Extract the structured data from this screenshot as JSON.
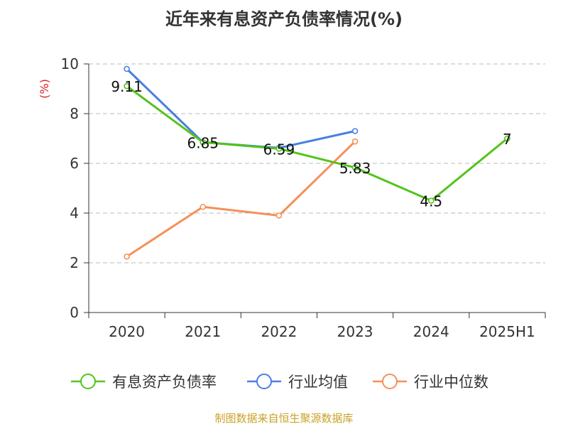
{
  "chart_data": {
    "type": "line",
    "title": "近年来有息资产负债率情况(%)",
    "ylabel": "(%)",
    "xlabel": "",
    "categories": [
      "2020",
      "2021",
      "2022",
      "2023",
      "2024",
      "2025H1"
    ],
    "ylim": [
      0,
      10
    ],
    "yticks": [
      0,
      2,
      4,
      6,
      8,
      10
    ],
    "grid": "horizontal-dashed",
    "legend_position": "bottom",
    "series": [
      {
        "name": "有息资产负债率",
        "color": "#52c41a",
        "values": [
          9.11,
          6.85,
          6.59,
          5.83,
          4.5,
          7
        ],
        "labels": [
          "9.11",
          "6.85",
          "6.59",
          "5.83",
          "4.5",
          "7"
        ]
      },
      {
        "name": "行业均值",
        "color": "#4a7ee0",
        "values": [
          9.8,
          6.85,
          6.62,
          7.3,
          null,
          null
        ]
      },
      {
        "name": "行业中位数",
        "color": "#f5905a",
        "values": [
          2.25,
          4.25,
          3.9,
          6.88,
          null,
          null
        ]
      }
    ]
  },
  "source": "制图数据来自恒生聚源数据库",
  "colors": {
    "title": "#333333",
    "ylabel": "#e02020",
    "source": "#c9a227",
    "axis": "#333333",
    "grid": "#bbbbbb"
  }
}
